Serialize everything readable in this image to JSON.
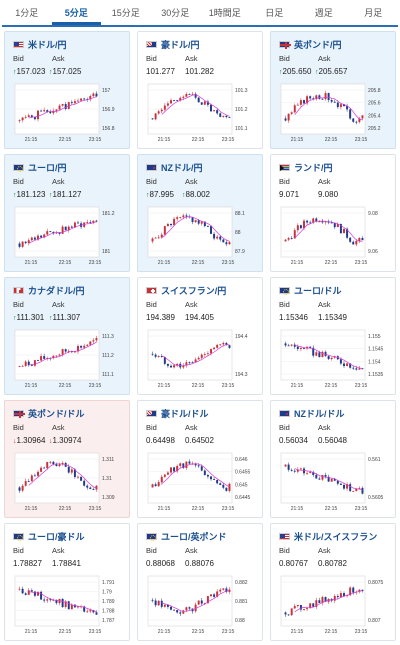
{
  "tabs": [
    {
      "label": "1分足",
      "active": false
    },
    {
      "label": "5分足",
      "active": true
    },
    {
      "label": "15分足",
      "active": false
    },
    {
      "label": "30分足",
      "active": false
    },
    {
      "label": "1時間足",
      "active": false
    },
    {
      "label": "日足",
      "active": false
    },
    {
      "label": "週足",
      "active": false
    },
    {
      "label": "月足",
      "active": false
    }
  ],
  "labels": {
    "bid": "Bid",
    "ask": "Ask"
  },
  "colors": {
    "up": "#c8323a",
    "down": "#1f3a8a",
    "ma": "#d63ad6",
    "grid": "#d8d8d8",
    "highlight_blue": "#e9f3fb",
    "highlight_red": "#fbeeee",
    "arrow_up": "#1a7f3c",
    "arrow_down": "#c8323a"
  },
  "cards": [
    {
      "name": "米ドル/円",
      "flag": "us",
      "bg": "blue",
      "arrow": "up",
      "bid": "157.023",
      "ask": "157.025",
      "yticks": [
        "157",
        "156.9",
        "156.8"
      ],
      "xticks": [
        "21:15",
        "22:15",
        "23:15"
      ],
      "trend": "up",
      "seed": 1
    },
    {
      "name": "豪ドル/円",
      "flag": "au",
      "bg": "none",
      "arrow": "",
      "bid": "101.277",
      "ask": "101.282",
      "yticks": [
        "101.3",
        "101.2",
        "101.1"
      ],
      "xticks": [
        "21:15",
        "22:15",
        "23:15"
      ],
      "trend": "humpdown",
      "seed": 2
    },
    {
      "name": "英ポンド/円",
      "flag": "gb",
      "bg": "blue",
      "arrow": "up",
      "bid": "205.650",
      "ask": "205.657",
      "yticks": [
        "205.8",
        "205.6",
        "205.4",
        "205.2"
      ],
      "xticks": [
        "21:15",
        "22:15",
        "23:15"
      ],
      "trend": "humpdown",
      "seed": 3
    },
    {
      "name": "ユーロ/円",
      "flag": "eu",
      "bg": "blue",
      "arrow": "up",
      "bid": "181.123",
      "ask": "181.127",
      "yticks": [
        "181.2",
        "181"
      ],
      "xticks": [
        "21:15",
        "22:15",
        "23:15"
      ],
      "trend": "up",
      "seed": 4
    },
    {
      "name": "NZドル/円",
      "flag": "nz",
      "bg": "blue",
      "arrow": "up",
      "bid": "87.995",
      "ask": "88.002",
      "yticks": [
        "88.1",
        "88",
        "87.9"
      ],
      "xticks": [
        "21:15",
        "22:15",
        "23:15"
      ],
      "trend": "humpdown",
      "seed": 5
    },
    {
      "name": "ランド/円",
      "flag": "za",
      "bg": "none",
      "arrow": "",
      "bid": "9.071",
      "ask": "9.080",
      "yticks": [
        "9.08",
        "9.06"
      ],
      "xticks": [
        "21:15",
        "22:15",
        "23:15"
      ],
      "trend": "humpdown",
      "seed": 6
    },
    {
      "name": "カナダドル/円",
      "flag": "ca",
      "bg": "blue",
      "arrow": "up",
      "bid": "111.301",
      "ask": "111.307",
      "yticks": [
        "111.3",
        "111.2",
        "111.1"
      ],
      "xticks": [
        "21:15",
        "22:15",
        "23:15"
      ],
      "trend": "up",
      "seed": 7
    },
    {
      "name": "スイスフラン/円",
      "flag": "ch",
      "bg": "none",
      "arrow": "",
      "bid": "194.389",
      "ask": "194.405",
      "yticks": [
        "194.4",
        "194.3"
      ],
      "xticks": [
        "21:15",
        "22:15",
        "23:15"
      ],
      "trend": "dipup",
      "seed": 8
    },
    {
      "name": "ユーロ/ドル",
      "flag": "eu",
      "bg": "none",
      "arrow": "",
      "bid": "1.15346",
      "ask": "1.15349",
      "yticks": [
        "1.155",
        "1.1545",
        "1.154",
        "1.1535"
      ],
      "xticks": [
        "21:15",
        "22:15",
        "23:15"
      ],
      "trend": "down",
      "seed": 9
    },
    {
      "name": "英ポンド/ドル",
      "flag": "gb",
      "bg": "red",
      "arrow": "down",
      "bid": "1.30964",
      "ask": "1.30974",
      "yticks": [
        "1.311",
        "1.31",
        "1.309"
      ],
      "xticks": [
        "21:15",
        "22:15",
        "23:15"
      ],
      "trend": "humpdown",
      "seed": 10
    },
    {
      "name": "豪ドル/ドル",
      "flag": "au",
      "bg": "none",
      "arrow": "",
      "bid": "0.64498",
      "ask": "0.64502",
      "yticks": [
        "0.646",
        "0.6455",
        "0.645",
        "0.6445"
      ],
      "xticks": [
        "21:15",
        "22:15",
        "23:15"
      ],
      "trend": "humpdown",
      "seed": 11
    },
    {
      "name": "NZドル/ドル",
      "flag": "nz",
      "bg": "none",
      "arrow": "",
      "bid": "0.56034",
      "ask": "0.56048",
      "yticks": [
        "0.561",
        "0.5605"
      ],
      "xticks": [
        "21:15",
        "22:15",
        "23:15"
      ],
      "trend": "down",
      "seed": 12
    },
    {
      "name": "ユーロ/豪ドル",
      "flag": "eu",
      "bg": "none",
      "arrow": "",
      "bid": "1.78827",
      "ask": "1.78841",
      "yticks": [
        "1.791",
        "1.79",
        "1.789",
        "1.788",
        "1.787"
      ],
      "xticks": [
        "21:15",
        "22:15",
        "23:15"
      ],
      "trend": "down",
      "seed": 13
    },
    {
      "name": "ユーロ/英ポンド",
      "flag": "eu",
      "bg": "none",
      "arrow": "",
      "bid": "0.88068",
      "ask": "0.88076",
      "yticks": [
        "0.882",
        "0.881",
        "0.88"
      ],
      "xticks": [
        "21:15",
        "22:15",
        "23:15"
      ],
      "trend": "dipup",
      "seed": 14
    },
    {
      "name": "米ドル/スイスフラン",
      "flag": "us",
      "bg": "none",
      "arrow": "",
      "bid": "0.80767",
      "ask": "0.80782",
      "yticks": [
        "0.8075",
        "0.807"
      ],
      "xticks": [
        "21:15",
        "22:15",
        "23:15"
      ],
      "trend": "up",
      "seed": 15
    }
  ]
}
